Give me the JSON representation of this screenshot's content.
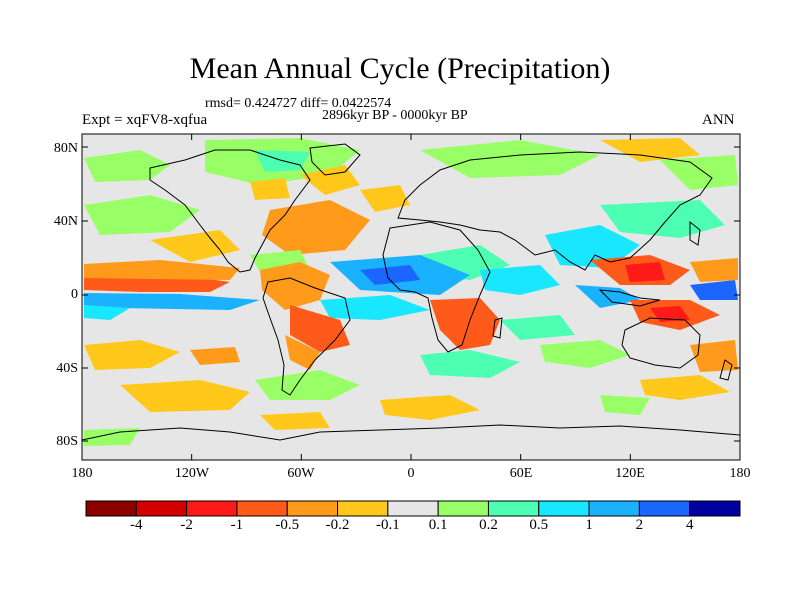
{
  "title": "Mean Annual Cycle (Precipitation)",
  "stats": "rmsd= 0.424727 diff= 0.0422574",
  "period": "2896kyr BP - 0000kyr BP",
  "experiment": "Expt = xqFV8-xqfua",
  "season": "ANN",
  "lat_labels": [
    "80N",
    "40N",
    "0",
    "40S",
    "80S"
  ],
  "lon_labels": [
    "180",
    "120W",
    "60W",
    "0",
    "60E",
    "120E",
    "180"
  ],
  "colorbar": {
    "labels": [
      "-4",
      "-2",
      "-1",
      "-0.5",
      "-0.2",
      "-0.1",
      "0.1",
      "0.2",
      "0.5",
      "1",
      "2",
      "4"
    ],
    "colors": [
      "#8c0000",
      "#d40000",
      "#ff1a1a",
      "#ff5a1a",
      "#ff9a1a",
      "#ffc81a",
      "#e6e6e6",
      "#99ff66",
      "#4dffb3",
      "#19e6ff",
      "#1ab2ff",
      "#1a66ff",
      "#0000a0"
    ]
  },
  "colors": {
    "land_outline": "#000000",
    "neutral": "#e6e6e6"
  }
}
